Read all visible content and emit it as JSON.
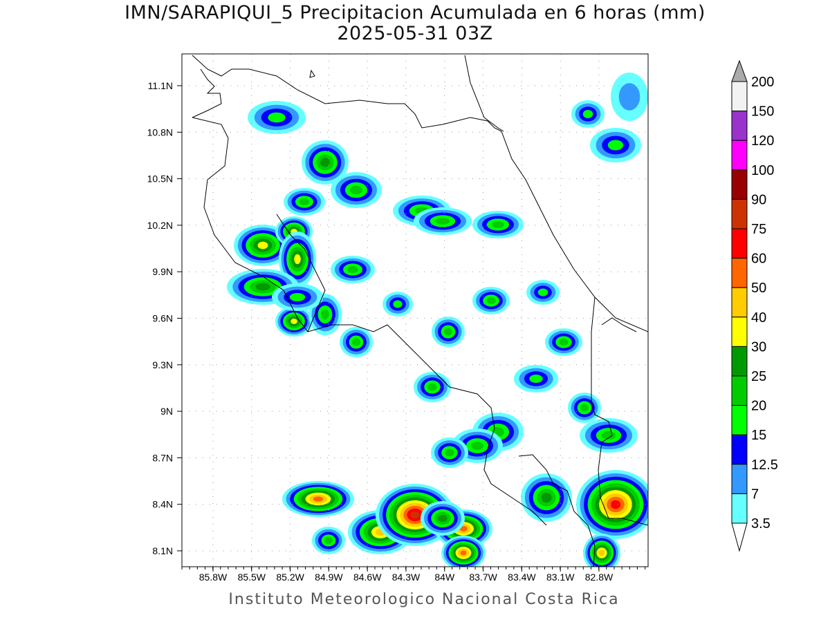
{
  "title": {
    "line1": "IMN/SARAPIQUI_5 Precipitacion Acumulada en 6 horas (mm)",
    "line2": "2025-05-31 03Z"
  },
  "footer": "Instituto Meteorologico Nacional Costa Rica",
  "map": {
    "lat_labels": [
      "11.1N",
      "10.8N",
      "10.5N",
      "10.2N",
      "9.9N",
      "9.6N",
      "9.3N",
      "9N",
      "8.7N",
      "8.4N",
      "8.1N"
    ],
    "lon_labels": [
      "85.8W",
      "85.5W",
      "85.2W",
      "84.9W",
      "84.6W",
      "84.3W",
      "84W",
      "83.7W",
      "83.4W",
      "83.1W",
      "82.8W"
    ],
    "grid": true
  },
  "colorbar": {
    "levels": [
      "3.5",
      "7",
      "12.5",
      "15",
      "20",
      "25",
      "30",
      "40",
      "50",
      "60",
      "75",
      "90",
      "100",
      "120",
      "150",
      "200"
    ],
    "colors": [
      "#66ffff",
      "#3399ff",
      "#0000ff",
      "#00ff00",
      "#00cc00",
      "#009900",
      "#ffff00",
      "#ffcc00",
      "#ff6600",
      "#ff0000",
      "#cc3300",
      "#990000",
      "#ff00ff",
      "#9933cc",
      "#f2f2f2"
    ],
    "over_color": "#aaaaaa",
    "under_color": "#ffffff"
  }
}
